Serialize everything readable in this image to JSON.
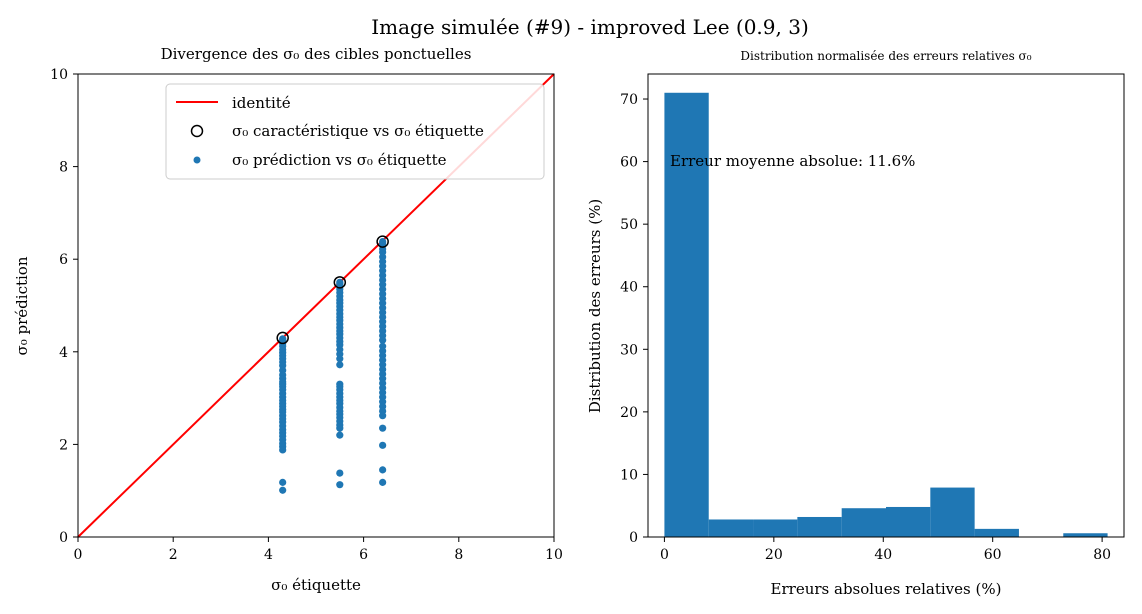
{
  "figure": {
    "suptitle": "Image simulée (#9) - improved Lee (0.9, 3)"
  },
  "chart_data": [
    {
      "type": "scatter",
      "title": "Divergence des σ₀ des cibles ponctuelles",
      "xlabel": "σ₀ étiquette",
      "ylabel": "σ₀ prédiction",
      "xlim": [
        0,
        10
      ],
      "ylim": [
        0,
        10
      ],
      "xticks": [
        "0",
        "2",
        "4",
        "6",
        "8",
        "10"
      ],
      "yticks": [
        "0",
        "2",
        "4",
        "6",
        "8",
        "10"
      ],
      "grid": false,
      "legend": {
        "placement": "top-right",
        "entries": [
          "identité",
          "σ₀ caractéristique vs σ₀ étiquette",
          "σ₀ prédiction vs σ₀ étiquette"
        ]
      },
      "identity_line": {
        "name": "identité",
        "x": [
          0,
          10
        ],
        "y": [
          0,
          10
        ],
        "color": "#ff0000"
      },
      "characteristic": {
        "name": "σ₀ caractéristique vs σ₀ étiquette",
        "x": [
          4.3,
          5.5,
          6.4
        ],
        "y": [
          4.3,
          5.5,
          6.38
        ]
      },
      "predictions": {
        "name": "σ₀ prédiction vs σ₀ étiquette",
        "color": "#1f77b4",
        "groups": [
          {
            "x": 4.3,
            "y": [
              4.28,
              4.26,
              4.22,
              4.18,
              4.12,
              4.05,
              3.98,
              3.92,
              3.85,
              3.78,
              3.7,
              3.6,
              3.5,
              3.42,
              3.35,
              3.3,
              3.25,
              3.18,
              3.1,
              3.02,
              2.95,
              2.88,
              2.82,
              2.75,
              2.7,
              2.62,
              2.55,
              2.48,
              2.4,
              2.32,
              2.25,
              2.18,
              2.1,
              2.02,
              1.95,
              1.88,
              1.18,
              1.01
            ]
          },
          {
            "x": 5.5,
            "y": [
              5.5,
              5.47,
              5.42,
              5.35,
              5.28,
              5.2,
              5.12,
              5.05,
              4.98,
              4.9,
              4.82,
              4.75,
              4.68,
              4.6,
              4.52,
              4.45,
              4.38,
              4.3,
              4.22,
              4.15,
              4.05,
              3.95,
              3.85,
              3.72,
              3.3,
              3.25,
              3.18,
              3.1,
              3.02,
              2.95,
              2.88,
              2.8,
              2.72,
              2.65,
              2.58,
              2.5,
              2.42,
              2.35,
              2.2,
              1.38,
              1.13
            ]
          },
          {
            "x": 6.4,
            "y": [
              6.38,
              6.35,
              6.3,
              6.22,
              6.15,
              6.05,
              5.95,
              5.85,
              5.75,
              5.65,
              5.55,
              5.45,
              5.35,
              5.25,
              5.15,
              5.05,
              4.95,
              4.85,
              4.75,
              4.65,
              4.55,
              4.45,
              4.35,
              4.25,
              4.12,
              4.02,
              3.92,
              3.82,
              3.72,
              3.62,
              3.52,
              3.42,
              3.32,
              3.22,
              3.12,
              3.02,
              2.92,
              2.82,
              2.72,
              2.62,
              2.35,
              1.98,
              1.45,
              1.18
            ]
          }
        ]
      }
    },
    {
      "type": "bar",
      "title": "Distribution normalisée des erreurs relatives σ₀",
      "xlabel": "Erreurs absolues relatives (%)",
      "ylabel": "Distribution des erreurs (%)",
      "xlim": [
        -3,
        84
      ],
      "ylim": [
        0,
        74
      ],
      "xticks": [
        "0",
        "20",
        "40",
        "60",
        "80"
      ],
      "yticks": [
        "0",
        "10",
        "20",
        "30",
        "40",
        "50",
        "60",
        "70"
      ],
      "grid": false,
      "bin_edges": [
        0,
        8.1,
        16.2,
        24.3,
        32.4,
        40.5,
        48.6,
        56.7,
        64.8,
        72.9,
        81.0
      ],
      "values": [
        71,
        2.8,
        2.8,
        3.2,
        4.6,
        4.8,
        7.9,
        1.3,
        0.0,
        0.6
      ],
      "color": "#1f77b4",
      "annotation": "Erreur moyenne absolue: 11.6%"
    }
  ]
}
